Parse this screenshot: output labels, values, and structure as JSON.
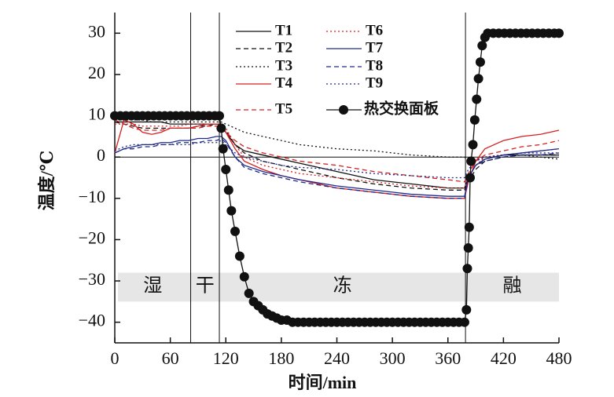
{
  "chart_data": {
    "type": "line",
    "xlabel": "时间/min",
    "ylabel": "温度/℃",
    "xlim": [
      0,
      480
    ],
    "ylim": [
      -45,
      35
    ],
    "xticks": [
      0,
      60,
      120,
      180,
      240,
      300,
      360,
      420,
      480
    ],
    "yticks": [
      {
        "value": -40,
        "label": "−40"
      },
      {
        "value": -30,
        "label": "−30"
      },
      {
        "value": -20,
        "label": "−20"
      },
      {
        "value": -10,
        "label": "−10"
      },
      0,
      10,
      20,
      30
    ],
    "phase_band": [
      -35,
      -28
    ],
    "phase_boundaries": [
      82,
      113,
      379
    ],
    "phases": [
      "湿",
      "干",
      "冻",
      "融"
    ],
    "x": [
      0,
      10,
      20,
      30,
      40,
      50,
      60,
      70,
      80,
      90,
      100,
      110,
      115,
      120,
      130,
      140,
      160,
      180,
      200,
      240,
      280,
      320,
      360,
      378,
      382,
      390,
      400,
      420,
      440,
      460,
      480
    ],
    "series": [
      {
        "name": "T1",
        "color": "#111111",
        "style": "solid",
        "values": [
          8.5,
          8.5,
          8.5,
          8.5,
          8.5,
          8.5,
          8,
          8,
          8,
          8,
          8,
          8,
          8,
          6,
          3,
          1.5,
          0.5,
          -0.5,
          -1.5,
          -3.5,
          -5.5,
          -6.5,
          -7.5,
          -7.5,
          -5,
          -2,
          -0.5,
          0.5,
          0.5,
          0.5,
          0.5
        ]
      },
      {
        "name": "T2",
        "color": "#111111",
        "style": "dashed",
        "values": [
          8.5,
          8,
          7.5,
          7,
          7,
          7,
          7,
          7,
          7,
          7.5,
          7.5,
          8,
          8,
          6.5,
          3,
          1,
          -1,
          -2,
          -3,
          -5,
          -6.5,
          -7.5,
          -8,
          -8,
          -6,
          -3,
          -1,
          0,
          0.5,
          0.5,
          0.5
        ]
      },
      {
        "name": "T3",
        "color": "#111111",
        "style": "dotted",
        "values": [
          9,
          9,
          9,
          9,
          8.5,
          8.5,
          8.5,
          8.5,
          8.5,
          8.5,
          8.5,
          8.5,
          8.5,
          8,
          7,
          6,
          5,
          4,
          3,
          2,
          1.5,
          0.5,
          0,
          0,
          -1,
          -0.5,
          0,
          0.5,
          0.5,
          0,
          -0.5
        ]
      },
      {
        "name": "T4",
        "color": "#d62020",
        "style": "solid",
        "values": [
          1,
          9,
          8,
          6,
          5.5,
          6,
          7,
          7,
          7,
          7.5,
          8,
          8,
          8,
          6,
          2,
          -1,
          -3,
          -4.5,
          -5.5,
          -7.5,
          -8.5,
          -9.5,
          -10,
          -10,
          -6,
          -1,
          2,
          4,
          5,
          5.5,
          6.5
        ]
      },
      {
        "name": "T5",
        "color": "#d62020",
        "style": "dashed",
        "values": [
          9,
          8,
          7,
          6.5,
          6.5,
          6.5,
          7,
          7,
          7,
          7,
          7.5,
          7.5,
          7,
          6,
          4,
          2.5,
          1,
          0,
          -1,
          -2,
          -3.5,
          -4.5,
          -5.5,
          -6,
          -4,
          -1,
          0.5,
          1.5,
          2.5,
          3,
          4
        ]
      },
      {
        "name": "T6",
        "color": "#d62020",
        "style": "dotted",
        "values": [
          8,
          8,
          8,
          7.5,
          7.5,
          7.5,
          7.5,
          7.5,
          8,
          8,
          8,
          8,
          8,
          7,
          3,
          0,
          -2,
          -3,
          -4,
          -5,
          -6,
          -7,
          -7.5,
          -7.5,
          -5,
          -2,
          0,
          0.5,
          1,
          1.5,
          2
        ]
      },
      {
        "name": "T7",
        "color": "#1f2a8c",
        "style": "solid",
        "values": [
          1,
          2,
          2.5,
          3,
          3,
          3.5,
          3.5,
          4,
          4,
          4.5,
          4.5,
          5,
          5,
          4,
          0,
          -2,
          -3.5,
          -4.5,
          -5.5,
          -7,
          -8,
          -9,
          -9.5,
          -9.5,
          -5,
          -2,
          -0.5,
          0.5,
          1,
          1.5,
          2
        ]
      },
      {
        "name": "T8",
        "color": "#1f2a8c",
        "style": "dashed",
        "values": [
          1,
          2,
          2,
          2.5,
          2.5,
          3,
          3,
          3.5,
          3.5,
          3.5,
          4,
          4,
          4.5,
          3.5,
          0,
          -2.5,
          -4,
          -5,
          -6,
          -7.5,
          -8.5,
          -9.5,
          -10,
          -10,
          -5,
          -2,
          -1,
          0,
          0.5,
          0.5,
          1
        ]
      },
      {
        "name": "T9",
        "color": "#1f2a8c",
        "style": "dotted",
        "values": [
          1.5,
          2.5,
          3,
          3,
          3,
          3,
          3,
          3,
          3,
          3.5,
          3.5,
          3.5,
          4,
          3,
          1,
          0,
          -1,
          -2,
          -2.5,
          -3,
          -4,
          -4.5,
          -5,
          -5,
          -3,
          -1,
          0,
          0.5,
          1,
          1,
          1
        ]
      },
      {
        "name": "热交换面板",
        "color": "#111111",
        "style": "solid",
        "marker": true,
        "x": [
          0,
          6,
          12,
          18,
          24,
          30,
          36,
          42,
          48,
          54,
          60,
          66,
          72,
          78,
          84,
          90,
          96,
          102,
          108,
          113,
          115,
          117,
          120,
          123,
          126,
          130,
          135,
          140,
          145,
          150,
          155,
          160,
          165,
          170,
          175,
          180,
          186,
          192,
          198,
          204,
          210,
          216,
          222,
          228,
          234,
          240,
          246,
          252,
          258,
          264,
          270,
          276,
          282,
          288,
          294,
          300,
          306,
          312,
          318,
          324,
          330,
          336,
          342,
          348,
          354,
          360,
          366,
          372,
          378,
          380,
          381,
          382,
          383,
          384,
          385,
          387,
          389,
          391,
          393,
          395,
          397,
          400,
          403,
          409,
          415,
          421,
          427,
          433,
          439,
          445,
          451,
          457,
          463,
          469,
          475,
          480
        ],
        "values": [
          10,
          10,
          10,
          10,
          10,
          10,
          10,
          10,
          10,
          10,
          10,
          10,
          10,
          10,
          10,
          10,
          10,
          10,
          10,
          10,
          7,
          2,
          -3,
          -8,
          -13,
          -18,
          -24,
          -29,
          -33,
          -35,
          -36,
          -37,
          -38,
          -38.5,
          -39,
          -39.5,
          -39.5,
          -40,
          -40,
          -40,
          -40,
          -40,
          -40,
          -40,
          -40,
          -40,
          -40,
          -40,
          -40,
          -40,
          -40,
          -40,
          -40,
          -40,
          -40,
          -40,
          -40,
          -40,
          -40,
          -40,
          -40,
          -40,
          -40,
          -40,
          -40,
          -40,
          -40,
          -40,
          -40,
          -37,
          -27,
          -22,
          -17,
          -5,
          -1,
          3,
          9,
          14,
          19,
          23,
          27,
          29,
          30,
          30,
          30,
          30,
          30,
          30,
          30,
          30,
          30,
          30,
          30,
          30,
          30,
          30
        ]
      }
    ]
  }
}
